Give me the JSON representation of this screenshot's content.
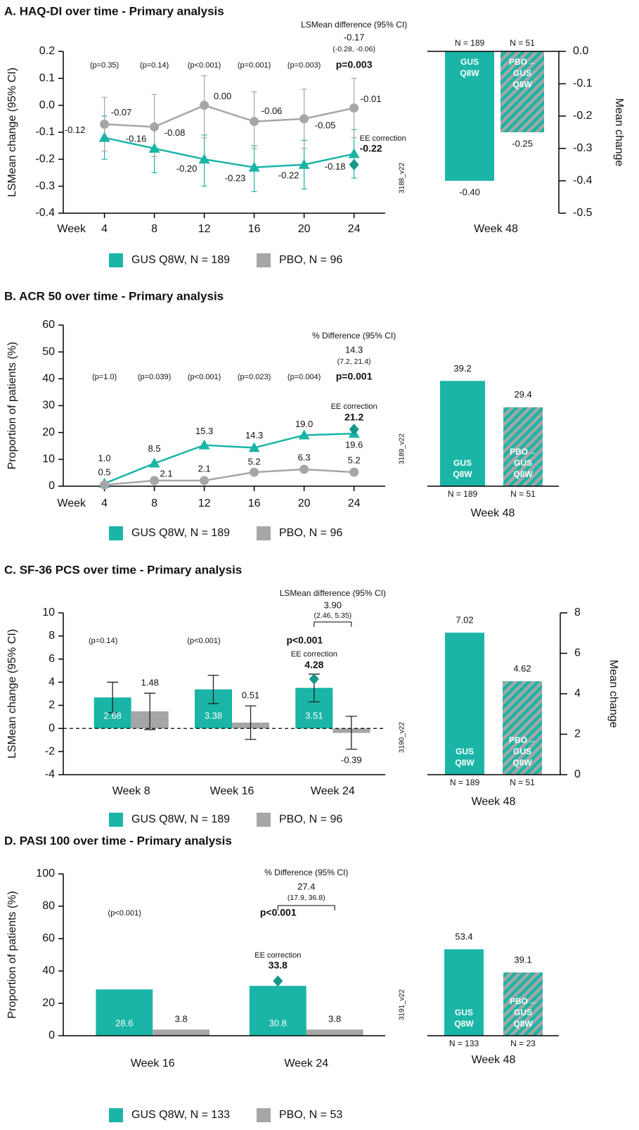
{
  "chart_data": [
    {
      "type": "line",
      "title": "A. HAQ-DI over time - Primary analysis",
      "y_label": "LSMean change (95% CI)",
      "x_label": "Week",
      "x": [
        4,
        8,
        12,
        16,
        20,
        24
      ],
      "xlim": [
        0.7,
        26.5
      ],
      "xticks": [
        4,
        8,
        12,
        16,
        20,
        24
      ],
      "ylim": [
        -0.4,
        0.2
      ],
      "yticks": [
        0.2,
        0.1,
        {
          "value": 0,
          "label": "0.0"
        },
        -0.1,
        -0.2,
        -0.3,
        -0.4
      ],
      "series": [
        {
          "name": "GUS Q8W, N = 189",
          "color": "#1ab5a6",
          "marker": "triangle",
          "values": [
            -0.12,
            -0.16,
            -0.2,
            -0.23,
            -0.22,
            -0.18
          ],
          "value_labels": [
            "-0.12",
            "-0.16",
            "-0.20",
            "-0.23",
            "-0.22",
            "-0.18"
          ],
          "ci_low": [
            -0.2,
            -0.25,
            -0.3,
            -0.32,
            -0.31,
            -0.27
          ],
          "ci_high": [
            -0.04,
            -0.07,
            -0.11,
            -0.15,
            -0.13,
            -0.09
          ]
        },
        {
          "name": "PBO, N = 96",
          "color": "#a6a6a6",
          "marker": "circle",
          "values": [
            -0.07,
            -0.08,
            0,
            -0.06,
            -0.05,
            -0.01
          ],
          "value_labels": [
            "-0.07",
            "-0.08",
            "0.00",
            "-0.06",
            "-0.05",
            "-0.01"
          ],
          "ci_low": [
            -0.17,
            -0.19,
            -0.12,
            -0.16,
            -0.16,
            -0.12
          ],
          "ci_high": [
            0.03,
            0.04,
            0.11,
            0.05,
            0.06,
            0.1
          ]
        }
      ],
      "p_values": [
        "(p=0.35)",
        "(p=0.14)",
        "(p<0.001)",
        "(p=0.001)",
        "(p=0.003)",
        "p=0.003"
      ],
      "difference": {
        "title": "LSMean difference (95% CI)",
        "value": "-0.17",
        "ci": "(-0.28, -0.06)"
      },
      "ee_correction": {
        "label": "EE correction",
        "value": -0.22,
        "color": "#15988c"
      },
      "code": "3188_v22"
    },
    {
      "type": "bar",
      "x_label": "Week 48",
      "y_label": "Mean change",
      "categories": [
        [
          "GUS",
          "Q8W"
        ],
        [
          "PBO→",
          "GUS",
          "Q8W"
        ]
      ],
      "n_labels": [
        "N = 189",
        "N = 51"
      ],
      "values": [
        -0.4,
        -0.25
      ],
      "value_labels": [
        "-0.40",
        "-0.25"
      ],
      "colors": [
        "#1ab5a6",
        "#1ab5a6"
      ],
      "hatched": [
        false,
        true
      ],
      "hatch_color": "#a6a6a6",
      "ylim": [
        -0.5,
        0
      ],
      "yticks": [
        {
          "value": 0,
          "label": "0.0"
        },
        -0.1,
        -0.2,
        -0.3,
        -0.4,
        -0.5
      ]
    },
    {
      "type": "line",
      "title": "B. ACR 50 over time - Primary analysis",
      "y_label": "Proportion of patients (%)",
      "x_label": "Week",
      "x": [
        4,
        8,
        12,
        16,
        20,
        24
      ],
      "xlim": [
        0.7,
        26.5
      ],
      "xticks": [
        4,
        8,
        12,
        16,
        20,
        24
      ],
      "ylim": [
        0,
        60
      ],
      "yticks": [
        60,
        50,
        40,
        30,
        20,
        10,
        0
      ],
      "series": [
        {
          "name": "GUS Q8W, N = 189",
          "color": "#1ab5a6",
          "marker": "triangle",
          "values": [
            1,
            8.5,
            15.3,
            14.3,
            19,
            19.6
          ],
          "value_labels": [
            "1.0",
            "8.5",
            "15.3",
            "14.3",
            "19.0",
            "19.6"
          ]
        },
        {
          "name": "PBO, N = 96",
          "color": "#a6a6a6",
          "marker": "circle",
          "values": [
            0.5,
            2.1,
            2.1,
            5.2,
            6.3,
            5.2
          ]
        }
      ],
      "p_values": [
        "(p=1.0)",
        "(p=0.039)",
        "(p<0.001)",
        "(p=0.023)",
        "(p=0.004)",
        "p=0.001"
      ],
      "difference": {
        "title": "% Difference (95% CI)",
        "value": "14.3",
        "ci": "(7.2, 21.4)"
      },
      "ee_correction": {
        "label": "EE correction",
        "value": 21.2,
        "color": "#15988c"
      },
      "code": "3189_v22"
    },
    {
      "type": "bar",
      "x_label": "Week 48",
      "categories": [
        [
          "GUS",
          "Q8W"
        ],
        [
          "PBO→",
          "GUS",
          "Q8W"
        ]
      ],
      "n_labels": [
        "N = 189",
        "N = 51"
      ],
      "values": [
        39.2,
        29.4
      ],
      "colors": [
        "#1ab5a6",
        "#1ab5a6"
      ],
      "hatched": [
        false,
        true
      ],
      "hatch_color": "#a6a6a6",
      "ylim": [
        0,
        60
      ]
    },
    {
      "type": "bar",
      "title": "C. SF-36 PCS over time - Primary analysis",
      "y_label": "LSMean change (95% CI)",
      "categories": [
        "Week 8",
        "Week 16",
        "Week 24"
      ],
      "ylim": [
        -4,
        10
      ],
      "yticks": [
        10,
        8,
        6,
        4,
        2,
        0,
        -2,
        -4
      ],
      "zero_line": true,
      "series": [
        {
          "name": "GUS Q8W, N = 189",
          "color": "#1ab5a6",
          "values": [
            2.68,
            3.38,
            3.51
          ],
          "ci_low": [
            1.35,
            2.15,
            2.3
          ],
          "ci_high": [
            4,
            4.6,
            4.7
          ]
        },
        {
          "name": "PBO, N = 96",
          "color": "#a6a6a6",
          "values": [
            1.48,
            0.51,
            -0.39
          ],
          "ci_low": [
            -0.1,
            -0.95,
            -1.8
          ],
          "ci_high": [
            3.05,
            1.95,
            1.05
          ]
        }
      ],
      "p_values": [
        "(p=0.14)",
        "(p<0.001)",
        "p<0.001"
      ],
      "difference": {
        "title": "LSMean difference (95% CI)",
        "value": "3.90",
        "ci": "(2.46, 5.35)"
      },
      "ee_correction": {
        "label": "EE correction",
        "value": 4.28,
        "color": "#15988c"
      },
      "code": "3190_v22"
    },
    {
      "type": "bar",
      "x_label": "Week 48",
      "y_label": "Mean change",
      "categories": [
        [
          "GUS",
          "Q8W"
        ],
        [
          "PBO→",
          "GUS",
          "Q8W"
        ]
      ],
      "n_labels": [
        "N = 189",
        "N = 51"
      ],
      "values": [
        7.02,
        4.62
      ],
      "colors": [
        "#1ab5a6",
        "#1ab5a6"
      ],
      "hatched": [
        false,
        true
      ],
      "hatch_color": "#a6a6a6",
      "ylim": [
        0,
        8
      ],
      "yticks": [
        8,
        6,
        4,
        2,
        0
      ]
    },
    {
      "type": "bar",
      "title": "D. PASI 100 over time - Primary analysis",
      "y_label": "Proportion of patients (%)",
      "categories": [
        "Week 16",
        "Week 24"
      ],
      "ylim": [
        0,
        100
      ],
      "yticks": [
        100,
        80,
        60,
        40,
        20,
        0
      ],
      "series": [
        {
          "name": "GUS Q8W, N = 133",
          "color": "#1ab5a6",
          "values": [
            28.6,
            30.8
          ]
        },
        {
          "name": "PBO, N = 53",
          "color": "#a6a6a6",
          "values": [
            3.8,
            3.8
          ]
        }
      ],
      "p_values": [
        "(p<0.001)",
        "p<0.001"
      ],
      "difference": {
        "title": "% Difference (95% CI)",
        "value": "27.4",
        "ci": "(17.9, 36.8)"
      },
      "ee_correction": {
        "label": "EE correction",
        "value": 33.8,
        "color": "#15988c"
      },
      "code": "3191_v22"
    },
    {
      "type": "bar",
      "x_label": "Week 48",
      "categories": [
        [
          "GUS",
          "Q8W"
        ],
        [
          "PBO→",
          "GUS",
          "Q8W"
        ]
      ],
      "n_labels": [
        "N = 133",
        "N = 23"
      ],
      "values": [
        53.4,
        39.1
      ],
      "colors": [
        "#1ab5a6",
        "#1ab5a6"
      ],
      "hatched": [
        false,
        true
      ],
      "hatch_color": "#a6a6a6",
      "ylim": [
        0,
        100
      ]
    }
  ]
}
